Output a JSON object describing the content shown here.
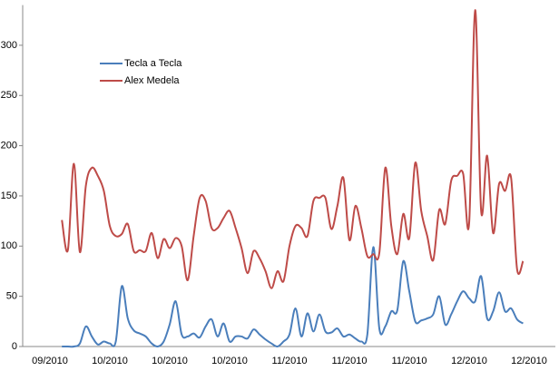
{
  "chart_data": {
    "type": "line",
    "categories": [
      "09/2010",
      null,
      null,
      null,
      null,
      null,
      null,
      null,
      null,
      null,
      "10/2010",
      null,
      null,
      null,
      null,
      null,
      null,
      null,
      null,
      null,
      "10/2010",
      null,
      null,
      null,
      null,
      null,
      null,
      null,
      null,
      null,
      "10/2010",
      null,
      null,
      null,
      null,
      null,
      null,
      null,
      null,
      null,
      "11/2010",
      null,
      null,
      null,
      null,
      null,
      null,
      null,
      null,
      null,
      "11/2010",
      null,
      null,
      null,
      null,
      null,
      null,
      null,
      null,
      null,
      "11/2010",
      null,
      null,
      null,
      null,
      null,
      null,
      null,
      null,
      null,
      "12/2010",
      null,
      null,
      null,
      null,
      null,
      null,
      null,
      null,
      null,
      "12/2010"
    ],
    "series": [
      {
        "name": "Tecla a Tecla",
        "color": "#4a7ebb",
        "values": [
          null,
          null,
          0,
          0,
          0,
          3,
          20,
          10,
          2,
          5,
          3,
          5,
          60,
          28,
          16,
          13,
          10,
          3,
          0,
          5,
          22,
          45,
          12,
          10,
          13,
          9,
          20,
          27,
          10,
          23,
          5,
          10,
          10,
          8,
          17,
          12,
          7,
          3,
          0,
          5,
          12,
          38,
          10,
          33,
          15,
          32,
          15,
          14,
          18,
          10,
          12,
          8,
          5,
          12,
          99,
          18,
          20,
          35,
          36,
          85,
          55,
          25,
          26,
          28,
          32,
          50,
          22,
          32,
          45,
          55,
          48,
          45,
          70,
          28,
          35,
          54,
          35,
          38,
          27,
          23,
          null
        ]
      },
      {
        "name": "Alex Medela",
        "color": "#be4b48",
        "values": [
          null,
          null,
          126,
          96,
          182,
          94,
          160,
          178,
          170,
          155,
          120,
          110,
          112,
          122,
          95,
          96,
          95,
          113,
          88,
          107,
          98,
          108,
          100,
          66,
          110,
          148,
          145,
          118,
          118,
          128,
          135,
          118,
          98,
          73,
          95,
          88,
          75,
          58,
          75,
          65,
          100,
          120,
          118,
          110,
          145,
          148,
          148,
          117,
          140,
          168,
          106,
          140,
          118,
          90,
          92,
          93,
          178,
          120,
          92,
          132,
          108,
          183,
          135,
          110,
          86,
          136,
          122,
          165,
          170,
          172,
          123,
          335,
          135,
          190,
          113,
          162,
          155,
          168,
          77,
          85,
          null
        ]
      }
    ],
    "ylim": [
      0,
      340
    ],
    "yticks": [
      0,
      50,
      100,
      150,
      200,
      250,
      300
    ],
    "legend": "upper-left"
  }
}
